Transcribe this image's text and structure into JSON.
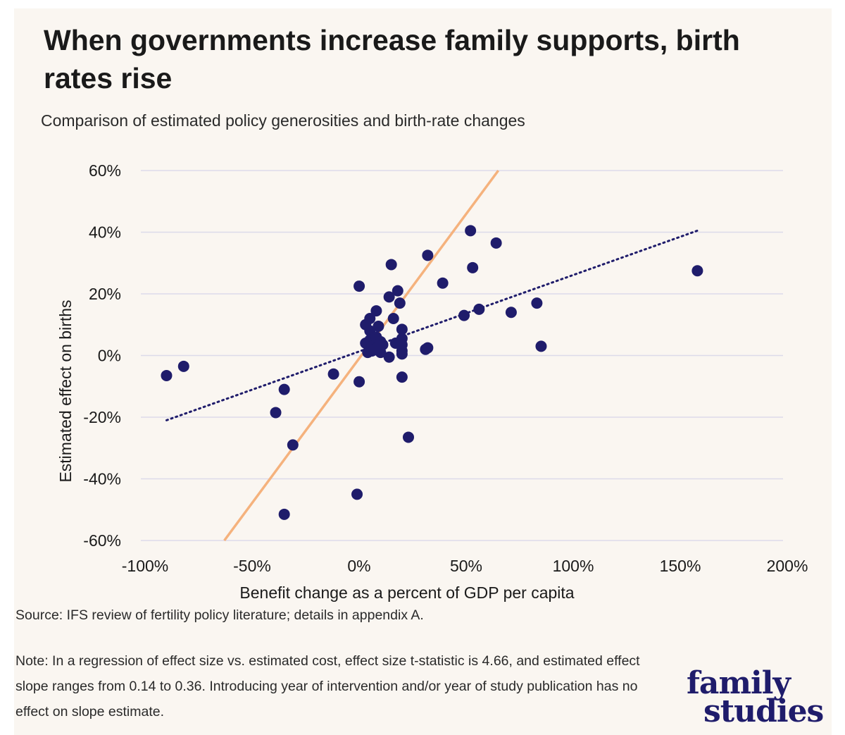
{
  "title": "When governments increase family supports, birth rates rise",
  "subtitle": "Comparison of estimated policy generosities and birth-rate changes",
  "source": "Source: IFS review of fertility policy literature; details in appendix A.",
  "note": "Note: In a regression of effect size vs. estimated cost, effect size t-statistic is 4.66, and estimated effect slope ranges from 0.14 to 0.36. Introducing year of intervention and/or year of study publication has no effect on slope estimate.",
  "logo": {
    "line1": "family",
    "line2": "studies"
  },
  "colors": {
    "background": "#faf6f1",
    "points": "#1f1c6b",
    "trend": "#1f1c6b",
    "reference": "#f5b27d",
    "grid": "#dcdaea"
  },
  "chart_data": {
    "type": "scatter",
    "title": "When governments increase family supports, birth rates rise",
    "subtitle": "Comparison of estimated policy generosities and birth-rate changes",
    "xlabel": "Benefit change as a percent of GDP per capita",
    "ylabel": "Estimated effect on births",
    "xlim": [
      -100,
      200
    ],
    "ylim": [
      -60,
      60
    ],
    "xticks": [
      -100,
      -50,
      0,
      50,
      100,
      150,
      200
    ],
    "yticks": [
      -60,
      -40,
      -20,
      0,
      20,
      40,
      60
    ],
    "xtick_labels": [
      "-100%",
      "-50%",
      "0%",
      "50%",
      "100%",
      "150%",
      "200%"
    ],
    "ytick_labels": [
      "-60%",
      "-40%",
      "-20%",
      "0%",
      "20%",
      "40%",
      "60%"
    ],
    "grid": "horizontal",
    "points": [
      {
        "x": -88,
        "y": -6.5
      },
      {
        "x": -80,
        "y": -3.5
      },
      {
        "x": -37,
        "y": -18.5
      },
      {
        "x": -33,
        "y": -11
      },
      {
        "x": -33,
        "y": -51.5
      },
      {
        "x": -29,
        "y": -29
      },
      {
        "x": -10,
        "y": -6
      },
      {
        "x": 1,
        "y": -45
      },
      {
        "x": 2,
        "y": -8.5
      },
      {
        "x": 2,
        "y": 22.5
      },
      {
        "x": 5,
        "y": 10
      },
      {
        "x": 5,
        "y": 4
      },
      {
        "x": 6,
        "y": 1
      },
      {
        "x": 7,
        "y": 8
      },
      {
        "x": 7,
        "y": 12
      },
      {
        "x": 7,
        "y": 5
      },
      {
        "x": 8,
        "y": 3
      },
      {
        "x": 8,
        "y": 1.5
      },
      {
        "x": 9,
        "y": 2
      },
      {
        "x": 10,
        "y": 14.5
      },
      {
        "x": 10,
        "y": 6
      },
      {
        "x": 11,
        "y": 9.5
      },
      {
        "x": 12,
        "y": 4.5
      },
      {
        "x": 12,
        "y": 1
      },
      {
        "x": 13,
        "y": 3.5
      },
      {
        "x": 16,
        "y": -0.5
      },
      {
        "x": 16,
        "y": 19
      },
      {
        "x": 17,
        "y": 29.5
      },
      {
        "x": 18,
        "y": 12
      },
      {
        "x": 19,
        "y": 4
      },
      {
        "x": 20,
        "y": 21
      },
      {
        "x": 21,
        "y": 17
      },
      {
        "x": 22,
        "y": 8.5
      },
      {
        "x": 22,
        "y": 5.5
      },
      {
        "x": 22,
        "y": 3.5
      },
      {
        "x": 22,
        "y": 1.5
      },
      {
        "x": 22,
        "y": 0.5
      },
      {
        "x": 22,
        "y": -7
      },
      {
        "x": 25,
        "y": -26.5
      },
      {
        "x": 33,
        "y": 2
      },
      {
        "x": 34,
        "y": 2.5
      },
      {
        "x": 34,
        "y": 32.5
      },
      {
        "x": 41,
        "y": 23.5
      },
      {
        "x": 51,
        "y": 13
      },
      {
        "x": 54,
        "y": 40.5
      },
      {
        "x": 55,
        "y": 28.5
      },
      {
        "x": 58,
        "y": 15
      },
      {
        "x": 66,
        "y": 36.5
      },
      {
        "x": 73,
        "y": 14
      },
      {
        "x": 85,
        "y": 17
      },
      {
        "x": 87,
        "y": 3
      },
      {
        "x": 160,
        "y": 27.5
      }
    ],
    "series": [
      {
        "name": "trend (dotted)",
        "type": "line",
        "x": [
          -88,
          160
        ],
        "y": [
          -21,
          40.5
        ]
      },
      {
        "name": "reference (solid)",
        "type": "line",
        "x": [
          -61,
          67
        ],
        "y": [
          -60,
          60
        ]
      }
    ]
  }
}
